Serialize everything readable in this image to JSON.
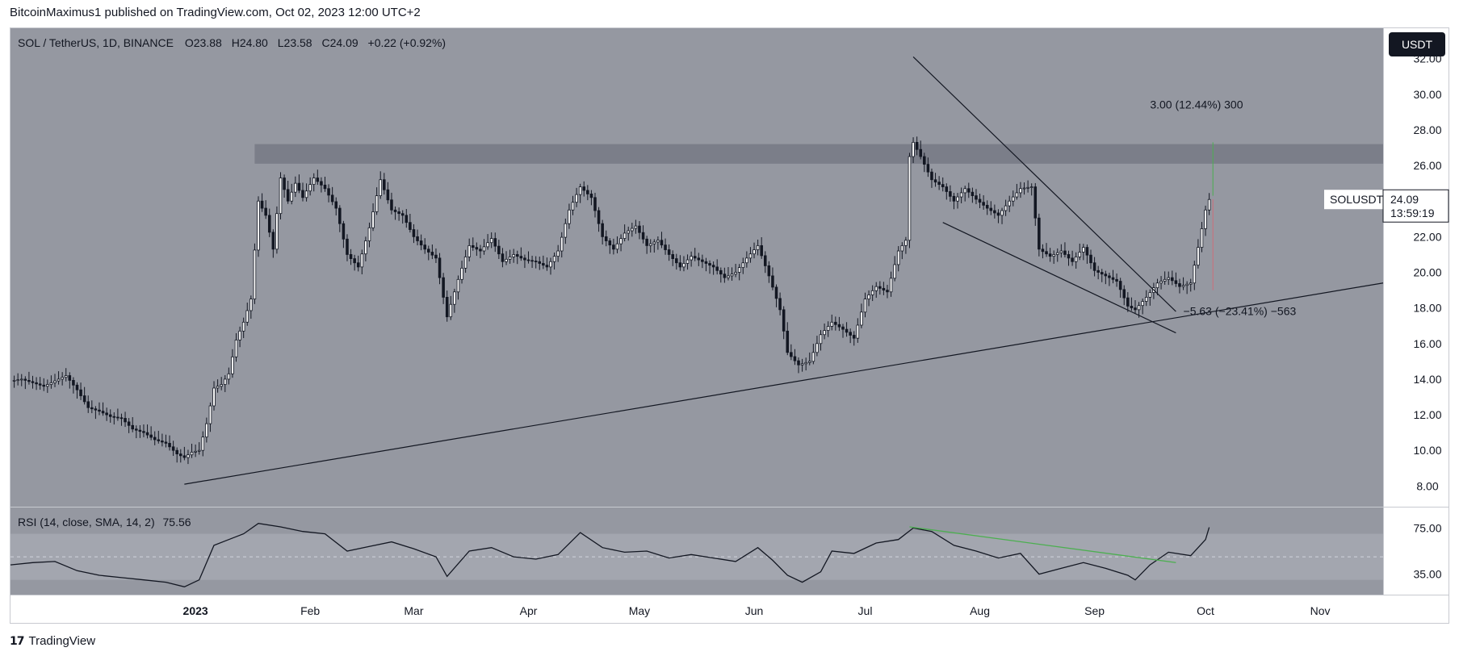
{
  "header": {
    "publisher_line": "BitcoinMaximus1 published on TradingView.com, Oct 02, 2023 12:00 UTC+2"
  },
  "footer": {
    "brand": "TradingView",
    "logo_glyph": "17"
  },
  "legend": {
    "symbol": "SOL / TetherUS, 1D, BINANCE",
    "o_label": "O",
    "o_value": "23.88",
    "h_label": "H",
    "h_value": "24.80",
    "l_label": "L",
    "l_value": "23.58",
    "c_label": "C",
    "c_value": "24.09",
    "change": "+0.22 (+0.92%)"
  },
  "currency_badge": "USDT",
  "price_label": {
    "symbol": "SOLUSDT",
    "value": "24.09",
    "countdown": "13:59:19"
  },
  "annotations": {
    "upper_measure": "3.00 (12.44%) 300",
    "lower_measure": "−5.63 (−23.41%) −563"
  },
  "rsi": {
    "label": "RSI (14, close, SMA, 14, 2)",
    "value": "75.56",
    "ticks": [
      "75.00",
      "35.00"
    ]
  },
  "colors": {
    "plot_bg": "#9598a1",
    "resistance_zone": "#787b86",
    "rsi_band": "#a3a6af",
    "candle": "#131722",
    "rsi_line": "#131722",
    "rsi_trendline": "#4caf50",
    "badge_bg": "#131722",
    "frame": "#c8cad0"
  },
  "chart_data": {
    "type": "candlestick",
    "symbol": "SOLUSDT",
    "interval": "1D",
    "exchange": "BINANCE",
    "ylim": [
      7.2,
      32.8
    ],
    "y_ticks": [
      "8.00",
      "10.00",
      "12.00",
      "14.00",
      "16.00",
      "18.00",
      "20.00",
      "22.00",
      "24.00",
      "26.00",
      "28.00",
      "30.00",
      "32.00"
    ],
    "x_ticks": [
      "2023",
      "Feb",
      "Mar",
      "Apr",
      "May",
      "Jun",
      "Jul",
      "Aug",
      "Sep",
      "Oct",
      "Nov"
    ],
    "x_tick_dates": [
      "2023-01-01",
      "2023-02-01",
      "2023-03-01",
      "2023-04-01",
      "2023-05-01",
      "2023-06-01",
      "2023-07-01",
      "2023-08-01",
      "2023-09-01",
      "2023-10-01",
      "2023-11-01"
    ],
    "date_range": [
      "2022-11-12",
      "2023-11-18"
    ],
    "closes": [
      [
        "2022-11-12",
        13.9
      ],
      [
        "2022-11-15",
        14.0
      ],
      [
        "2022-11-18",
        13.8
      ],
      [
        "2022-11-21",
        13.6
      ],
      [
        "2022-11-24",
        13.9
      ],
      [
        "2022-11-27",
        14.2
      ],
      [
        "2022-11-30",
        13.4
      ],
      [
        "2022-12-03",
        12.4
      ],
      [
        "2022-12-06",
        12.2
      ],
      [
        "2022-12-09",
        11.9
      ],
      [
        "2022-12-12",
        11.8
      ],
      [
        "2022-12-15",
        11.2
      ],
      [
        "2022-12-18",
        11.0
      ],
      [
        "2022-12-21",
        10.6
      ],
      [
        "2022-12-24",
        10.4
      ],
      [
        "2022-12-27",
        9.8
      ],
      [
        "2022-12-29",
        9.6
      ],
      [
        "2022-12-31",
        9.9
      ],
      [
        "2023-01-02",
        10.0
      ],
      [
        "2023-01-04",
        11.5
      ],
      [
        "2023-01-06",
        13.5
      ],
      [
        "2023-01-08",
        13.7
      ],
      [
        "2023-01-10",
        14.3
      ],
      [
        "2023-01-12",
        16.2
      ],
      [
        "2023-01-14",
        17.2
      ],
      [
        "2023-01-16",
        18.5
      ],
      [
        "2023-01-18",
        24.0
      ],
      [
        "2023-01-20",
        23.2
      ],
      [
        "2023-01-22",
        21.3
      ],
      [
        "2023-01-24",
        25.3
      ],
      [
        "2023-01-26",
        24.0
      ],
      [
        "2023-01-28",
        25.0
      ],
      [
        "2023-01-30",
        24.2
      ],
      [
        "2023-02-02",
        25.3
      ],
      [
        "2023-02-05",
        24.7
      ],
      [
        "2023-02-08",
        23.6
      ],
      [
        "2023-02-11",
        21.0
      ],
      [
        "2023-02-14",
        20.3
      ],
      [
        "2023-02-17",
        22.5
      ],
      [
        "2023-02-20",
        25.2
      ],
      [
        "2023-02-23",
        23.5
      ],
      [
        "2023-02-26",
        23.2
      ],
      [
        "2023-03-01",
        22.0
      ],
      [
        "2023-03-04",
        21.3
      ],
      [
        "2023-03-07",
        20.8
      ],
      [
        "2023-03-10",
        17.5
      ],
      [
        "2023-03-13",
        19.6
      ],
      [
        "2023-03-16",
        21.5
      ],
      [
        "2023-03-19",
        21.2
      ],
      [
        "2023-03-22",
        21.9
      ],
      [
        "2023-03-25",
        20.6
      ],
      [
        "2023-03-28",
        21.0
      ],
      [
        "2023-03-31",
        20.7
      ],
      [
        "2023-04-03",
        20.6
      ],
      [
        "2023-04-06",
        20.3
      ],
      [
        "2023-04-09",
        21.2
      ],
      [
        "2023-04-12",
        23.5
      ],
      [
        "2023-04-15",
        24.8
      ],
      [
        "2023-04-18",
        24.2
      ],
      [
        "2023-04-21",
        22.0
      ],
      [
        "2023-04-24",
        21.3
      ],
      [
        "2023-04-27",
        22.2
      ],
      [
        "2023-04-30",
        22.6
      ],
      [
        "2023-05-03",
        21.5
      ],
      [
        "2023-05-06",
        21.8
      ],
      [
        "2023-05-09",
        21.0
      ],
      [
        "2023-05-12",
        20.3
      ],
      [
        "2023-05-15",
        20.9
      ],
      [
        "2023-05-18",
        20.6
      ],
      [
        "2023-05-21",
        20.3
      ],
      [
        "2023-05-24",
        19.7
      ],
      [
        "2023-05-27",
        20.0
      ],
      [
        "2023-05-30",
        20.8
      ],
      [
        "2023-06-02",
        21.5
      ],
      [
        "2023-06-05",
        19.8
      ],
      [
        "2023-06-08",
        17.9
      ],
      [
        "2023-06-10",
        15.5
      ],
      [
        "2023-06-13",
        14.8
      ],
      [
        "2023-06-16",
        15.0
      ],
      [
        "2023-06-19",
        16.5
      ],
      [
        "2023-06-22",
        17.2
      ],
      [
        "2023-06-25",
        16.8
      ],
      [
        "2023-06-28",
        16.3
      ],
      [
        "2023-07-01",
        18.5
      ],
      [
        "2023-07-04",
        19.2
      ],
      [
        "2023-07-07",
        18.9
      ],
      [
        "2023-07-10",
        21.2
      ],
      [
        "2023-07-12",
        21.8
      ],
      [
        "2023-07-13",
        26.5
      ],
      [
        "2023-07-14",
        27.3
      ],
      [
        "2023-07-16",
        26.5
      ],
      [
        "2023-07-19",
        25.2
      ],
      [
        "2023-07-22",
        24.8
      ],
      [
        "2023-07-25",
        24.0
      ],
      [
        "2023-07-28",
        24.7
      ],
      [
        "2023-07-31",
        24.1
      ],
      [
        "2023-08-03",
        23.6
      ],
      [
        "2023-08-06",
        23.2
      ],
      [
        "2023-08-09",
        24.0
      ],
      [
        "2023-08-12",
        24.7
      ],
      [
        "2023-08-15",
        24.8
      ],
      [
        "2023-08-17",
        21.3
      ],
      [
        "2023-08-20",
        20.9
      ],
      [
        "2023-08-23",
        21.2
      ],
      [
        "2023-08-26",
        20.6
      ],
      [
        "2023-08-29",
        21.4
      ],
      [
        "2023-09-01",
        20.1
      ],
      [
        "2023-09-04",
        19.8
      ],
      [
        "2023-09-07",
        19.5
      ],
      [
        "2023-09-10",
        18.1
      ],
      [
        "2023-09-12",
        17.9
      ],
      [
        "2023-09-15",
        18.6
      ],
      [
        "2023-09-18",
        19.4
      ],
      [
        "2023-09-21",
        19.7
      ],
      [
        "2023-09-24",
        19.2
      ],
      [
        "2023-09-27",
        19.4
      ],
      [
        "2023-09-29",
        21.4
      ],
      [
        "2023-10-01",
        23.5
      ],
      [
        "2023-10-02",
        24.09
      ]
    ],
    "drawings": [
      {
        "name": "ascending support line",
        "from": [
          "2022-12-29",
          8.1
        ],
        "to": [
          "2023-11-18",
          19.4
        ]
      },
      {
        "name": "descending resistance line",
        "from": [
          "2023-07-14",
          32.1
        ],
        "to": [
          "2023-09-23",
          17.8
        ]
      },
      {
        "name": "wedge support line",
        "from": [
          "2023-07-22",
          22.8
        ],
        "to": [
          "2023-09-23",
          16.6
        ]
      },
      {
        "name": "resistance zone",
        "from": [
          "2023-01-17",
          27.2
        ],
        "to": [
          "2023-11-18",
          26.1
        ]
      }
    ],
    "rsi": {
      "ylim": [
        20,
        90
      ],
      "visible_ticks": [
        75,
        35
      ],
      "upper_band": 70,
      "lower_band": 30,
      "mid_line": 50,
      "values": [
        [
          "2022-11-12",
          43
        ],
        [
          "2022-11-18",
          45
        ],
        [
          "2022-11-24",
          46
        ],
        [
          "2022-11-30",
          38
        ],
        [
          "2022-12-06",
          34
        ],
        [
          "2022-12-12",
          32
        ],
        [
          "2022-12-18",
          30
        ],
        [
          "2022-12-24",
          28
        ],
        [
          "2022-12-29",
          24
        ],
        [
          "2023-01-02",
          30
        ],
        [
          "2023-01-06",
          60
        ],
        [
          "2023-01-10",
          65
        ],
        [
          "2023-01-14",
          70
        ],
        [
          "2023-01-18",
          79
        ],
        [
          "2023-01-24",
          76
        ],
        [
          "2023-01-30",
          72
        ],
        [
          "2023-02-05",
          70
        ],
        [
          "2023-02-11",
          55
        ],
        [
          "2023-02-17",
          59
        ],
        [
          "2023-02-23",
          63
        ],
        [
          "2023-03-01",
          57
        ],
        [
          "2023-03-07",
          50
        ],
        [
          "2023-03-10",
          33
        ],
        [
          "2023-03-16",
          55
        ],
        [
          "2023-03-22",
          58
        ],
        [
          "2023-03-28",
          50
        ],
        [
          "2023-04-03",
          48
        ],
        [
          "2023-04-09",
          52
        ],
        [
          "2023-04-15",
          71
        ],
        [
          "2023-04-21",
          58
        ],
        [
          "2023-04-27",
          54
        ],
        [
          "2023-05-03",
          55
        ],
        [
          "2023-05-09",
          49
        ],
        [
          "2023-05-15",
          52
        ],
        [
          "2023-05-21",
          49
        ],
        [
          "2023-05-27",
          46
        ],
        [
          "2023-06-02",
          58
        ],
        [
          "2023-06-06",
          47
        ],
        [
          "2023-06-10",
          34
        ],
        [
          "2023-06-14",
          28
        ],
        [
          "2023-06-19",
          37
        ],
        [
          "2023-06-22",
          55
        ],
        [
          "2023-06-28",
          53
        ],
        [
          "2023-07-04",
          62
        ],
        [
          "2023-07-10",
          65
        ],
        [
          "2023-07-14",
          75
        ],
        [
          "2023-07-19",
          72
        ],
        [
          "2023-07-25",
          60
        ],
        [
          "2023-07-31",
          55
        ],
        [
          "2023-08-06",
          49
        ],
        [
          "2023-08-12",
          53
        ],
        [
          "2023-08-17",
          35
        ],
        [
          "2023-08-23",
          40
        ],
        [
          "2023-08-29",
          45
        ],
        [
          "2023-09-04",
          40
        ],
        [
          "2023-09-10",
          34
        ],
        [
          "2023-09-12",
          30
        ],
        [
          "2023-09-16",
          43
        ],
        [
          "2023-09-21",
          54
        ],
        [
          "2023-09-27",
          51
        ],
        [
          "2023-10-01",
          65
        ],
        [
          "2023-10-02",
          75.56
        ]
      ],
      "trendlines": [
        {
          "name": "rsi descending trendline",
          "from": [
            "2023-07-13",
            76
          ],
          "to": [
            "2023-09-23",
            45
          ]
        }
      ]
    }
  }
}
